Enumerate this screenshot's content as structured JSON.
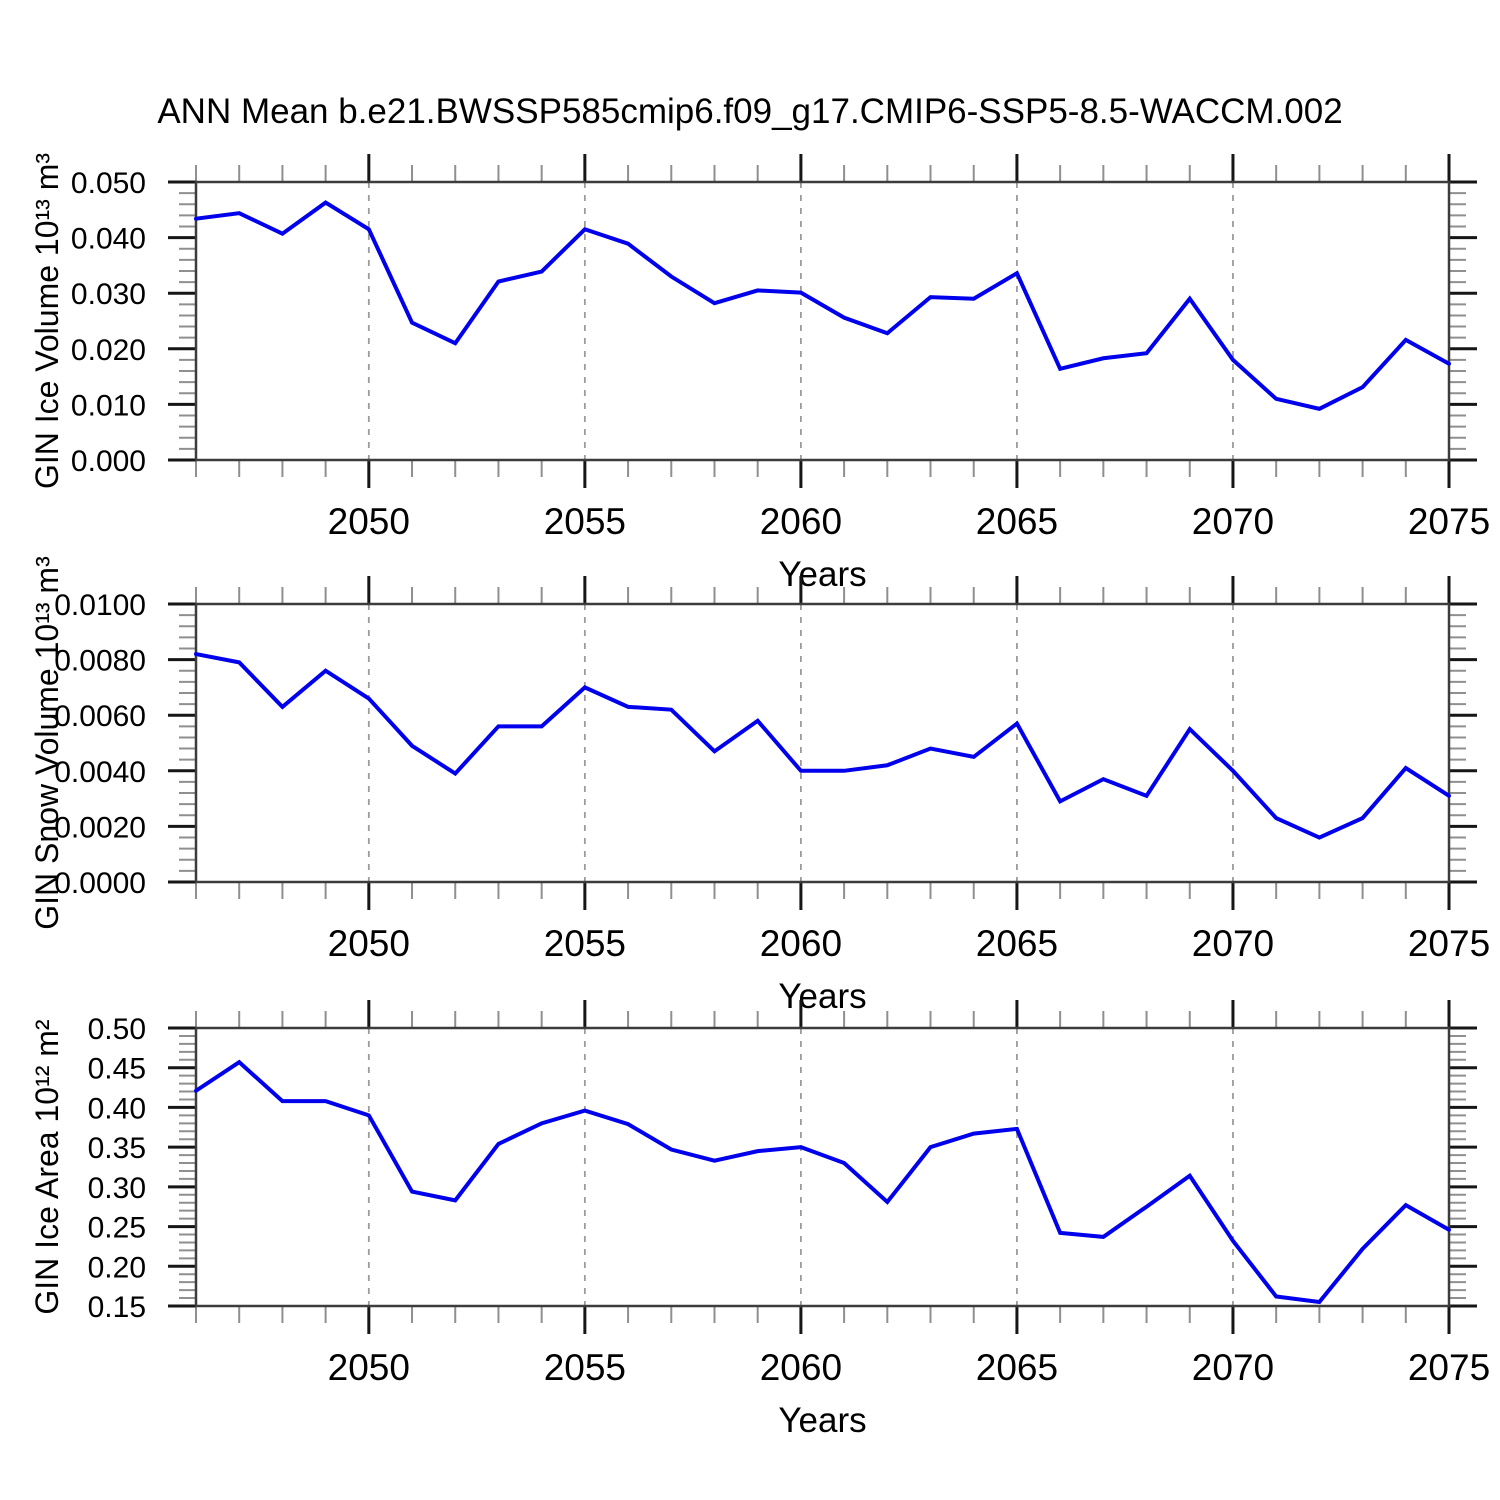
{
  "title": "ANN Mean b.e21.BWSSP585cmip6.f09_g17.CMIP6-SSP5-8.5-WACCM.002",
  "colors": {
    "line": "#0000ec",
    "frame": "#3c3c3c",
    "major_tick": "#161616",
    "minor_tick": "#8f8f8f",
    "grid": "#9c9c9c",
    "text": "#000000",
    "background": "#ffffff"
  },
  "chart_data": {
    "type": "line",
    "x_label": "Years",
    "xlim": [
      2046,
      2075
    ],
    "x_years": [
      2046,
      2047,
      2048,
      2049,
      2050,
      2051,
      2052,
      2053,
      2054,
      2055,
      2056,
      2057,
      2058,
      2059,
      2060,
      2061,
      2062,
      2063,
      2064,
      2065,
      2066,
      2067,
      2068,
      2069,
      2070,
      2071,
      2072,
      2073,
      2074,
      2075
    ],
    "x_major_ticks": [
      2050,
      2055,
      2060,
      2065,
      2070,
      2075
    ],
    "x_major_tick_labels": [
      "2050",
      "2055",
      "2060",
      "2065",
      "2070",
      "2075"
    ],
    "x_minor_step": 1,
    "grid_years": [
      2050,
      2055,
      2060,
      2065,
      2070
    ],
    "grid_style": "dashed",
    "legend": "none",
    "panels": [
      {
        "ylabel": "GIN Ice Volume 10¹³ m³",
        "ylim": [
          0,
          0.05
        ],
        "y_major_step": 0.01,
        "y_minor_step": 0.002,
        "y_decimals": 3,
        "values": [
          0.0434,
          0.0444,
          0.0407,
          0.0463,
          0.0415,
          0.0247,
          0.021,
          0.0321,
          0.0339,
          0.0415,
          0.0389,
          0.033,
          0.0282,
          0.0305,
          0.0301,
          0.0256,
          0.0228,
          0.0293,
          0.029,
          0.0336,
          0.0164,
          0.0183,
          0.0192,
          0.029,
          0.018,
          0.011,
          0.0092,
          0.0131,
          0.0216,
          0.0173
        ]
      },
      {
        "ylabel": "GIN Snow Volume 10¹³ m³",
        "ylim": [
          0,
          0.01
        ],
        "y_major_step": 0.002,
        "y_minor_step": 0.0004,
        "y_decimals": 4,
        "values": [
          0.0082,
          0.0079,
          0.0063,
          0.0076,
          0.0066,
          0.0049,
          0.0039,
          0.0056,
          0.0056,
          0.007,
          0.0063,
          0.0062,
          0.0047,
          0.0058,
          0.004,
          0.004,
          0.0042,
          0.0048,
          0.0045,
          0.0057,
          0.0029,
          0.0037,
          0.0031,
          0.0055,
          0.004,
          0.0023,
          0.0016,
          0.0023,
          0.0041,
          0.0031
        ]
      },
      {
        "ylabel": "GIN Ice Area 10¹² m²",
        "ylim": [
          0.15,
          0.5
        ],
        "y_major_step": 0.05,
        "y_minor_step": 0.01,
        "y_decimals": 2,
        "values": [
          0.421,
          0.457,
          0.408,
          0.408,
          0.39,
          0.294,
          0.283,
          0.354,
          0.38,
          0.396,
          0.379,
          0.347,
          0.333,
          0.345,
          0.35,
          0.33,
          0.281,
          0.35,
          0.367,
          0.373,
          0.242,
          0.237,
          0.275,
          0.314,
          0.232,
          0.162,
          0.155,
          0.222,
          0.277,
          0.246
        ]
      }
    ]
  }
}
